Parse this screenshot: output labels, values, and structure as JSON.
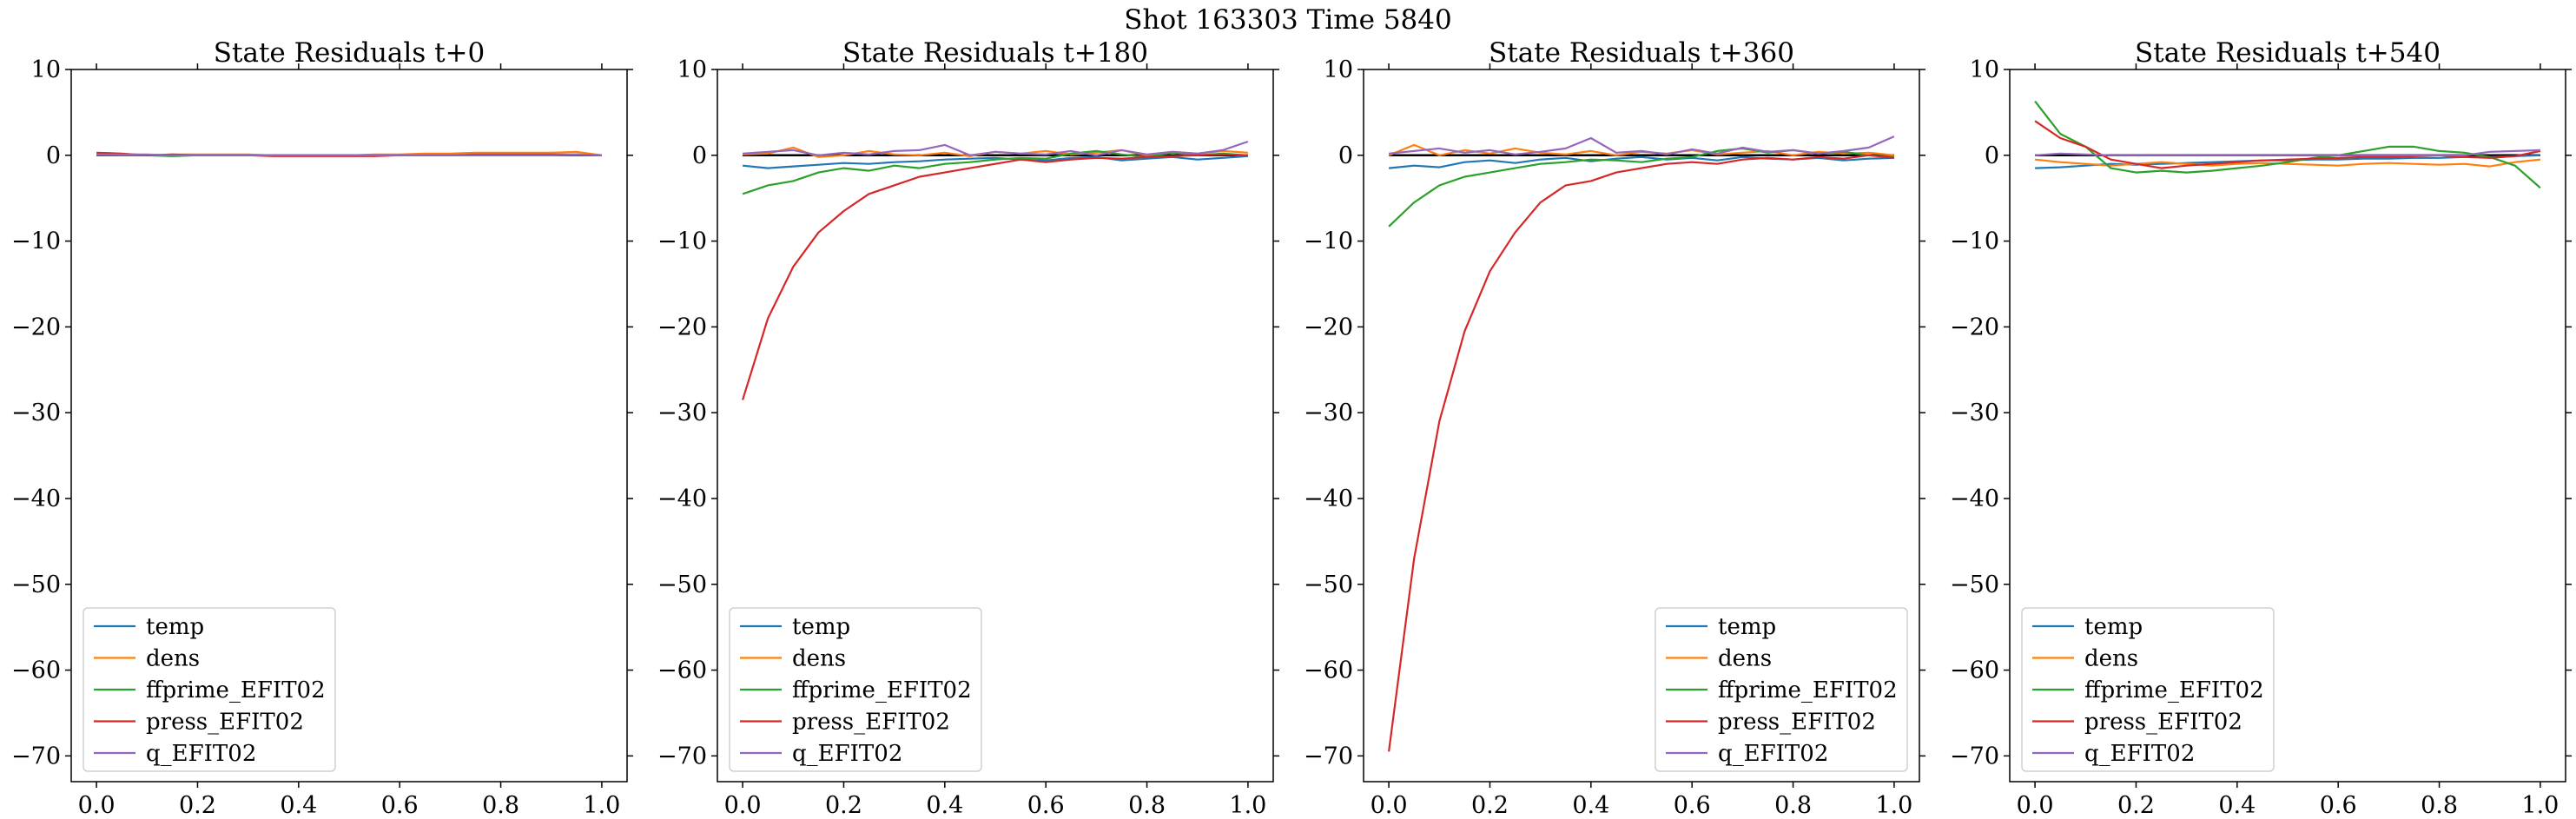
{
  "suptitle": "Shot 163303   Time 5840",
  "chart_data": [
    {
      "type": "line",
      "title": "State Residuals t+0",
      "xlim": [
        -0.05,
        1.05
      ],
      "ylim": [
        -73,
        10
      ],
      "xticks": [
        0.0,
        0.2,
        0.4,
        0.6,
        0.8,
        1.0
      ],
      "xtick_labels": [
        "0.0",
        "0.2",
        "0.4",
        "0.6",
        "0.8",
        "1.0"
      ],
      "yticks": [
        10,
        0,
        -10,
        -20,
        -30,
        -40,
        -50,
        -60,
        -70
      ],
      "ytick_labels": [
        "10",
        "0",
        "−10",
        "−20",
        "−30",
        "−40",
        "−50",
        "−60",
        "−70"
      ],
      "reference_line": {
        "y": 0,
        "color": "#000000"
      },
      "legend": {
        "loc": "lower left"
      },
      "x": [
        0.0,
        0.05,
        0.1,
        0.15,
        0.2,
        0.25,
        0.3,
        0.35,
        0.4,
        0.45,
        0.5,
        0.55,
        0.6,
        0.65,
        0.7,
        0.75,
        0.8,
        0.85,
        0.9,
        0.95,
        1.0
      ],
      "series": [
        {
          "name": "temp",
          "color": "#1f77b4",
          "values": [
            0.0,
            0.0,
            0.0,
            0.0,
            0.0,
            0.0,
            0.0,
            0.0,
            0.0,
            0.0,
            0.0,
            0.0,
            0.0,
            0.0,
            0.0,
            0.0,
            0.0,
            0.0,
            0.0,
            0.0,
            0.0
          ]
        },
        {
          "name": "dens",
          "color": "#ff7f0e",
          "values": [
            0.1,
            0.1,
            0.0,
            0.1,
            0.1,
            0.1,
            0.1,
            0.0,
            0.0,
            0.0,
            0.0,
            0.1,
            0.1,
            0.2,
            0.2,
            0.3,
            0.3,
            0.3,
            0.3,
            0.4,
            0.0
          ]
        },
        {
          "name": "ffprime_EFIT02",
          "color": "#2ca02c",
          "values": [
            0.1,
            0.0,
            0.0,
            -0.1,
            0.0,
            0.0,
            0.0,
            0.0,
            0.0,
            0.0,
            0.0,
            0.0,
            0.0,
            0.0,
            0.0,
            0.0,
            0.0,
            0.0,
            0.0,
            0.1,
            0.0
          ]
        },
        {
          "name": "press_EFIT02",
          "color": "#d62728",
          "values": [
            0.3,
            0.2,
            0.0,
            0.1,
            0.0,
            0.0,
            0.0,
            -0.1,
            -0.1,
            -0.1,
            -0.1,
            -0.1,
            0.0,
            0.0,
            0.0,
            0.1,
            0.1,
            0.1,
            0.1,
            0.1,
            0.0
          ]
        },
        {
          "name": "q_EFIT02",
          "color": "#9467bd",
          "values": [
            0.1,
            0.1,
            0.1,
            0.0,
            0.0,
            0.0,
            0.0,
            0.0,
            0.0,
            0.0,
            0.0,
            0.0,
            0.0,
            0.0,
            0.0,
            0.0,
            0.0,
            0.0,
            0.0,
            0.1,
            0.0
          ]
        }
      ]
    },
    {
      "type": "line",
      "title": "State Residuals t+180",
      "xlim": [
        -0.05,
        1.05
      ],
      "ylim": [
        -73,
        10
      ],
      "xticks": [
        0.0,
        0.2,
        0.4,
        0.6,
        0.8,
        1.0
      ],
      "xtick_labels": [
        "0.0",
        "0.2",
        "0.4",
        "0.6",
        "0.8",
        "1.0"
      ],
      "yticks": [
        10,
        0,
        -10,
        -20,
        -30,
        -40,
        -50,
        -60,
        -70
      ],
      "ytick_labels": [
        "10",
        "0",
        "−10",
        "−20",
        "−30",
        "−40",
        "−50",
        "−60",
        "−70"
      ],
      "reference_line": {
        "y": 0,
        "color": "#000000"
      },
      "legend": {
        "loc": "lower left"
      },
      "x": [
        0.0,
        0.05,
        0.1,
        0.15,
        0.2,
        0.25,
        0.3,
        0.35,
        0.4,
        0.45,
        0.5,
        0.55,
        0.6,
        0.65,
        0.7,
        0.75,
        0.8,
        0.85,
        0.9,
        0.95,
        1.0
      ],
      "series": [
        {
          "name": "temp",
          "color": "#1f77b4",
          "values": [
            -1.2,
            -1.5,
            -1.3,
            -1.1,
            -0.9,
            -1.0,
            -0.8,
            -0.7,
            -0.5,
            -0.4,
            -0.3,
            -0.5,
            -0.6,
            -0.3,
            -0.2,
            -0.6,
            -0.4,
            -0.2,
            -0.5,
            -0.3,
            -0.1
          ]
        },
        {
          "name": "dens",
          "color": "#ff7f0e",
          "values": [
            0.1,
            0.2,
            0.9,
            -0.2,
            0.0,
            0.5,
            0.1,
            0.0,
            0.3,
            -0.1,
            0.4,
            0.2,
            0.5,
            0.1,
            0.3,
            0.6,
            0.0,
            0.4,
            0.2,
            0.5,
            0.3
          ]
        },
        {
          "name": "ffprime_EFIT02",
          "color": "#2ca02c",
          "values": [
            -4.5,
            -3.5,
            -3.0,
            -2.0,
            -1.5,
            -1.8,
            -1.2,
            -1.5,
            -1.0,
            -0.8,
            -0.5,
            -0.3,
            -0.4,
            0.2,
            0.5,
            0.1,
            -0.2,
            0.3,
            0.0,
            0.2,
            0.0
          ]
        },
        {
          "name": "press_EFIT02",
          "color": "#d62728",
          "values": [
            -28.5,
            -19.0,
            -13.0,
            -9.0,
            -6.5,
            -4.5,
            -3.5,
            -2.5,
            -2.0,
            -1.5,
            -1.0,
            -0.5,
            -0.8,
            -0.5,
            -0.3,
            -0.4,
            -0.2,
            -0.1,
            0.0,
            0.1,
            0.0
          ]
        },
        {
          "name": "q_EFIT02",
          "color": "#9467bd",
          "values": [
            0.2,
            0.4,
            0.6,
            0.0,
            0.3,
            0.1,
            0.5,
            0.6,
            1.2,
            0.0,
            0.4,
            0.2,
            0.1,
            0.5,
            0.0,
            0.6,
            0.1,
            0.4,
            0.2,
            0.6,
            1.6
          ]
        }
      ]
    },
    {
      "type": "line",
      "title": "State Residuals t+360",
      "xlim": [
        -0.05,
        1.05
      ],
      "ylim": [
        -73,
        10
      ],
      "xticks": [
        0.0,
        0.2,
        0.4,
        0.6,
        0.8,
        1.0
      ],
      "xtick_labels": [
        "0.0",
        "0.2",
        "0.4",
        "0.6",
        "0.8",
        "1.0"
      ],
      "yticks": [
        10,
        0,
        -10,
        -20,
        -30,
        -40,
        -50,
        -60,
        -70
      ],
      "ytick_labels": [
        "10",
        "0",
        "−10",
        "−20",
        "−30",
        "−40",
        "−50",
        "−60",
        "−70"
      ],
      "reference_line": {
        "y": 0,
        "color": "#000000"
      },
      "legend": {
        "loc": "lower right"
      },
      "x": [
        0.0,
        0.05,
        0.1,
        0.15,
        0.2,
        0.25,
        0.3,
        0.35,
        0.4,
        0.45,
        0.5,
        0.55,
        0.6,
        0.65,
        0.7,
        0.75,
        0.8,
        0.85,
        0.9,
        0.95,
        1.0
      ],
      "series": [
        {
          "name": "temp",
          "color": "#1f77b4",
          "values": [
            -1.5,
            -1.2,
            -1.4,
            -0.8,
            -0.6,
            -0.9,
            -0.5,
            -0.3,
            -0.7,
            -0.4,
            -0.2,
            -0.5,
            -0.3,
            -0.6,
            -0.2,
            -0.4,
            -0.5,
            -0.3,
            -0.6,
            -0.4,
            -0.3
          ]
        },
        {
          "name": "dens",
          "color": "#ff7f0e",
          "values": [
            0.0,
            1.2,
            0.0,
            0.6,
            0.2,
            0.8,
            0.3,
            0.1,
            0.5,
            0.0,
            0.4,
            0.2,
            0.6,
            0.1,
            0.3,
            0.5,
            0.0,
            0.4,
            0.2,
            0.3,
            0.0
          ]
        },
        {
          "name": "ffprime_EFIT02",
          "color": "#2ca02c",
          "values": [
            -8.3,
            -5.5,
            -3.5,
            -2.5,
            -2.0,
            -1.5,
            -1.0,
            -0.8,
            -0.5,
            -0.6,
            -0.8,
            -0.4,
            -0.2,
            0.5,
            0.8,
            0.3,
            0.6,
            0.2,
            0.4,
            0.0,
            -0.2
          ]
        },
        {
          "name": "press_EFIT02",
          "color": "#d62728",
          "values": [
            -69.5,
            -47.0,
            -31.0,
            -20.5,
            -13.5,
            -9.0,
            -5.5,
            -3.5,
            -3.0,
            -2.0,
            -1.5,
            -1.0,
            -0.8,
            -1.0,
            -0.5,
            -0.3,
            -0.5,
            -0.2,
            -0.4,
            0.0,
            -0.3
          ]
        },
        {
          "name": "q_EFIT02",
          "color": "#9467bd",
          "values": [
            0.2,
            0.5,
            0.8,
            0.3,
            0.6,
            0.1,
            0.4,
            0.8,
            2.0,
            0.3,
            0.5,
            0.1,
            0.7,
            0.2,
            0.9,
            0.4,
            0.6,
            0.2,
            0.5,
            0.9,
            2.2
          ]
        }
      ]
    },
    {
      "type": "line",
      "title": "State Residuals t+540",
      "xlim": [
        -0.05,
        1.05
      ],
      "ylim": [
        -73,
        10
      ],
      "xticks": [
        0.0,
        0.2,
        0.4,
        0.6,
        0.8,
        1.0
      ],
      "xtick_labels": [
        "0.0",
        "0.2",
        "0.4",
        "0.6",
        "0.8",
        "1.0"
      ],
      "yticks": [
        10,
        0,
        -10,
        -20,
        -30,
        -40,
        -50,
        -60,
        -70
      ],
      "ytick_labels": [
        "10",
        "0",
        "−10",
        "−20",
        "−30",
        "−40",
        "−50",
        "−60",
        "−70"
      ],
      "reference_line": {
        "y": 0,
        "color": "#000000"
      },
      "legend": {
        "loc": "lower left"
      },
      "x": [
        0.0,
        0.05,
        0.1,
        0.15,
        0.2,
        0.25,
        0.3,
        0.35,
        0.4,
        0.45,
        0.5,
        0.55,
        0.6,
        0.65,
        0.7,
        0.75,
        0.8,
        0.85,
        0.9,
        0.95,
        1.0
      ],
      "series": [
        {
          "name": "temp",
          "color": "#1f77b4",
          "values": [
            -1.5,
            -1.4,
            -1.2,
            -1.0,
            -1.1,
            -1.0,
            -0.9,
            -0.8,
            -0.7,
            -0.6,
            -0.6,
            -0.5,
            -0.5,
            -0.4,
            -0.4,
            -0.3,
            -0.3,
            -0.2,
            -0.2,
            -0.1,
            0.0
          ]
        },
        {
          "name": "dens",
          "color": "#ff7f0e",
          "values": [
            -0.5,
            -0.8,
            -1.0,
            -1.2,
            -1.0,
            -0.8,
            -1.0,
            -1.2,
            -1.0,
            -0.9,
            -1.0,
            -1.1,
            -1.2,
            -1.0,
            -0.9,
            -1.0,
            -1.1,
            -1.0,
            -1.3,
            -0.8,
            -0.5
          ]
        },
        {
          "name": "ffprime_EFIT02",
          "color": "#2ca02c",
          "values": [
            6.3,
            2.5,
            1.0,
            -1.5,
            -2.0,
            -1.8,
            -2.0,
            -1.8,
            -1.5,
            -1.2,
            -0.8,
            -0.3,
            0.0,
            0.5,
            1.0,
            1.0,
            0.5,
            0.3,
            -0.2,
            -1.2,
            -3.8
          ]
        },
        {
          "name": "press_EFIT02",
          "color": "#d62728",
          "values": [
            4.0,
            2.0,
            1.0,
            -0.5,
            -1.0,
            -1.5,
            -1.2,
            -1.0,
            -0.8,
            -0.6,
            -0.5,
            -0.4,
            -0.3,
            -0.2,
            -0.2,
            -0.1,
            0.0,
            -0.2,
            -0.3,
            -0.1,
            0.5
          ]
        },
        {
          "name": "q_EFIT02",
          "color": "#9467bd",
          "values": [
            0.0,
            0.2,
            0.1,
            0.0,
            0.0,
            0.0,
            0.0,
            0.0,
            0.0,
            0.0,
            0.0,
            0.0,
            0.0,
            0.0,
            0.0,
            0.0,
            0.0,
            0.0,
            0.4,
            0.5,
            0.6
          ]
        }
      ]
    }
  ]
}
